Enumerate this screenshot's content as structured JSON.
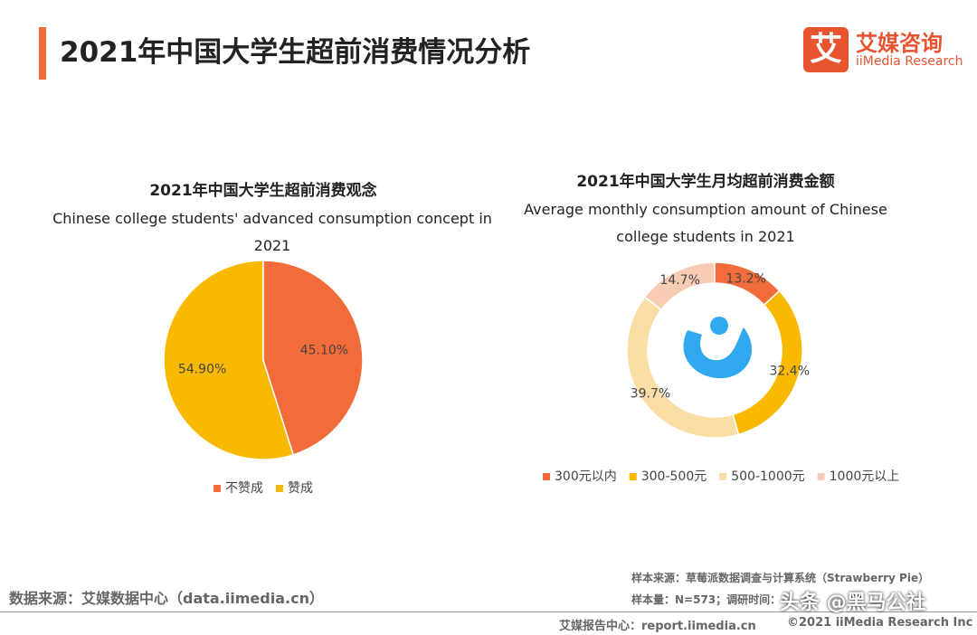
{
  "header": {
    "title": "2021年中国大学生超前消费情况分析",
    "logo_mark": "艾",
    "logo_name": "艾媒咨询",
    "logo_subname": "iiMedia Research"
  },
  "chart_data": [
    {
      "type": "pie",
      "title": "2021年中国大学生超前消费观念",
      "subtitle": "Chinese college students' advanced consumption concept in 2021",
      "categories": [
        "不赞成",
        "赞成"
      ],
      "values": [
        45.1,
        54.9
      ],
      "value_labels": [
        "45.10%",
        "54.90%"
      ],
      "colors": [
        "#f26b3a",
        "#f9b900"
      ]
    },
    {
      "type": "donut",
      "title": "2021年中国大学生月均超前消费金额",
      "subtitle": "Average monthly consumption amount of Chinese college students in 2021",
      "categories": [
        "300元以内",
        "300-500元",
        "500-1000元",
        "1000元以上"
      ],
      "values": [
        13.2,
        32.4,
        39.7,
        14.7
      ],
      "value_labels": [
        "13.2%",
        "32.4%",
        "39.7%",
        "14.7%"
      ],
      "colors": [
        "#f26b3a",
        "#f9b900",
        "#fbdda6",
        "#f8ccb4"
      ]
    }
  ],
  "footer": {
    "source": "数据来源：艾媒数据中心（data.iimedia.cn）",
    "sample_source": "样本来源：草莓派数据调查与计算系统（Strawberry Pie）",
    "sample_size": "样本量：N=573；调研时间：",
    "report_center": "艾媒报告中心：report.iimedia.cn",
    "copyright": "©2021  iiMedia Research  Inc",
    "watermark": "头条 @黑马公社"
  }
}
